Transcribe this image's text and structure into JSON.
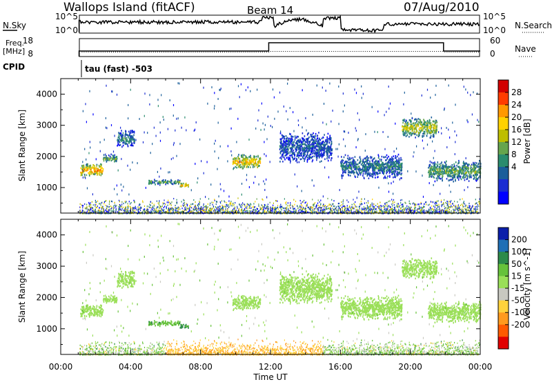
{
  "header": {
    "station": "Wallops Island (fitACF)",
    "beam": "Beam 14",
    "date": "07/Aug/2010"
  },
  "labels": {
    "nsky": "N.Sky",
    "nsearch": "N.Search",
    "freq_line1": "Freq.",
    "freq_line2": "[MHz]",
    "nave": "Nave",
    "cpid": "CPID",
    "cpid_value": "tau (fast) -503",
    "x_axis": "Time UT"
  },
  "panels": {
    "noise_ticks_left": [
      "10^5",
      "10^0"
    ],
    "noise_ticks_right": [
      "10^5",
      "10^0"
    ],
    "freq_ticks": [
      "18",
      "8"
    ],
    "nave_ticks": [
      "60",
      "0"
    ]
  },
  "colorbars": {
    "power": {
      "label": "Power [dB]",
      "ticks": [
        "28",
        "24",
        "20",
        "16",
        "12",
        "8",
        "4"
      ],
      "colors": [
        "#d20000",
        "#ff3c00",
        "#ff9900",
        "#ffd200",
        "#bebe00",
        "#66a54d",
        "#2a8c6e",
        "#1a5e9a",
        "#1a2dd2",
        "#0000ff"
      ]
    },
    "velocity": {
      "label": "Velocity [m s^-1]",
      "ticks": [
        "200",
        "100",
        "50",
        "15",
        "-15",
        "-50",
        "-100",
        "-200"
      ],
      "colors": [
        "#0a1eaa",
        "#1f6fb5",
        "#2c8a4a",
        "#66c23a",
        "#9adf58",
        "#c8c8c0",
        "#ffd23c",
        "#ff9a1e",
        "#ff5a00",
        "#e10000"
      ]
    }
  },
  "chart_data": [
    {
      "type": "heatmap",
      "name": "Power",
      "xlabel": "Time UT",
      "ylabel": "Slant Range [km]",
      "x_ticks": [
        "00:00",
        "04:00",
        "08:00",
        "12:00",
        "16:00",
        "20:00",
        "00:00"
      ],
      "y_ticks": [
        "1000",
        "2000",
        "3000",
        "4000"
      ],
      "xlim_hours": [
        0,
        24
      ],
      "ylim_km": [
        180,
        4500
      ],
      "clusters": [
        {
          "t": [
            1.1,
            2.4
          ],
          "r": [
            1350,
            1800
          ],
          "power": 24
        },
        {
          "t": [
            2.4,
            3.2
          ],
          "r": [
            1800,
            2100
          ],
          "power": 14
        },
        {
          "t": [
            3.2,
            4.2
          ],
          "r": [
            2300,
            2900
          ],
          "power": 10
        },
        {
          "t": [
            5.0,
            6.8
          ],
          "r": [
            1100,
            1300
          ],
          "power": 14
        },
        {
          "t": [
            6.8,
            7.3
          ],
          "r": [
            1000,
            1200
          ],
          "power": 22
        },
        {
          "t": [
            9.8,
            11.4
          ],
          "r": [
            1600,
            2100
          ],
          "power": 22
        },
        {
          "t": [
            12.5,
            15.5
          ],
          "r": [
            1800,
            2800
          ],
          "power": 8
        },
        {
          "t": [
            16.0,
            19.5
          ],
          "r": [
            1300,
            2100
          ],
          "power": 10
        },
        {
          "t": [
            19.5,
            21.5
          ],
          "r": [
            2600,
            3300
          ],
          "power": 18
        },
        {
          "t": [
            21.0,
            24.0
          ],
          "r": [
            1200,
            1900
          ],
          "power": 14
        }
      ]
    },
    {
      "type": "heatmap",
      "name": "Velocity",
      "xlabel": "Time UT",
      "ylabel": "Slant Range [km]",
      "x_ticks": [
        "00:00",
        "04:00",
        "08:00",
        "12:00",
        "16:00",
        "20:00",
        "00:00"
      ],
      "y_ticks": [
        "1000",
        "2000",
        "3000",
        "4000"
      ],
      "xlim_hours": [
        0,
        24
      ],
      "ylim_km": [
        180,
        4500
      ],
      "clusters": [
        {
          "t": [
            1.1,
            2.4
          ],
          "r": [
            1350,
            1800
          ],
          "velocity": 0
        },
        {
          "t": [
            2.4,
            3.2
          ],
          "r": [
            1800,
            2100
          ],
          "velocity": 0
        },
        {
          "t": [
            3.2,
            4.2
          ],
          "r": [
            2300,
            2900
          ],
          "velocity": 0
        },
        {
          "t": [
            5.0,
            6.8
          ],
          "r": [
            1100,
            1300
          ],
          "velocity": 40
        },
        {
          "t": [
            6.8,
            7.3
          ],
          "r": [
            1000,
            1200
          ],
          "velocity": 60
        },
        {
          "t": [
            9.8,
            11.4
          ],
          "r": [
            1600,
            2100
          ],
          "velocity": 0
        },
        {
          "t": [
            12.5,
            15.5
          ],
          "r": [
            1800,
            2800
          ],
          "velocity": 0
        },
        {
          "t": [
            16.0,
            19.5
          ],
          "r": [
            1300,
            2100
          ],
          "velocity": 0
        },
        {
          "t": [
            19.5,
            21.5
          ],
          "r": [
            2600,
            3300
          ],
          "velocity": 0
        },
        {
          "t": [
            21.0,
            24.0
          ],
          "r": [
            1200,
            1900
          ],
          "velocity": 0
        }
      ]
    }
  ]
}
